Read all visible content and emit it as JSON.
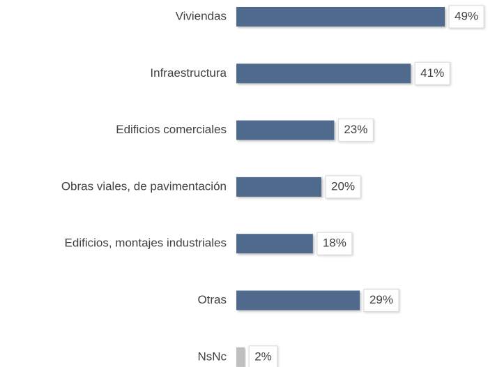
{
  "chart_data": {
    "type": "barh",
    "categories": [
      "Viviendas",
      "Infraestructura",
      "Edificios comerciales",
      "Obras viales, de pavimentación",
      "Edificios, montajes industriales",
      "Otras",
      "NsNc"
    ],
    "values": [
      49,
      41,
      23,
      20,
      18,
      29,
      2
    ],
    "value_labels": [
      "49%",
      "41%",
      "23%",
      "20%",
      "18%",
      "29%",
      "2%"
    ],
    "colors": [
      "#4f6a8c",
      "#4f6a8c",
      "#4f6a8c",
      "#4f6a8c",
      "#4f6a8c",
      "#4f6a8c",
      "#bfbfbf"
    ]
  }
}
